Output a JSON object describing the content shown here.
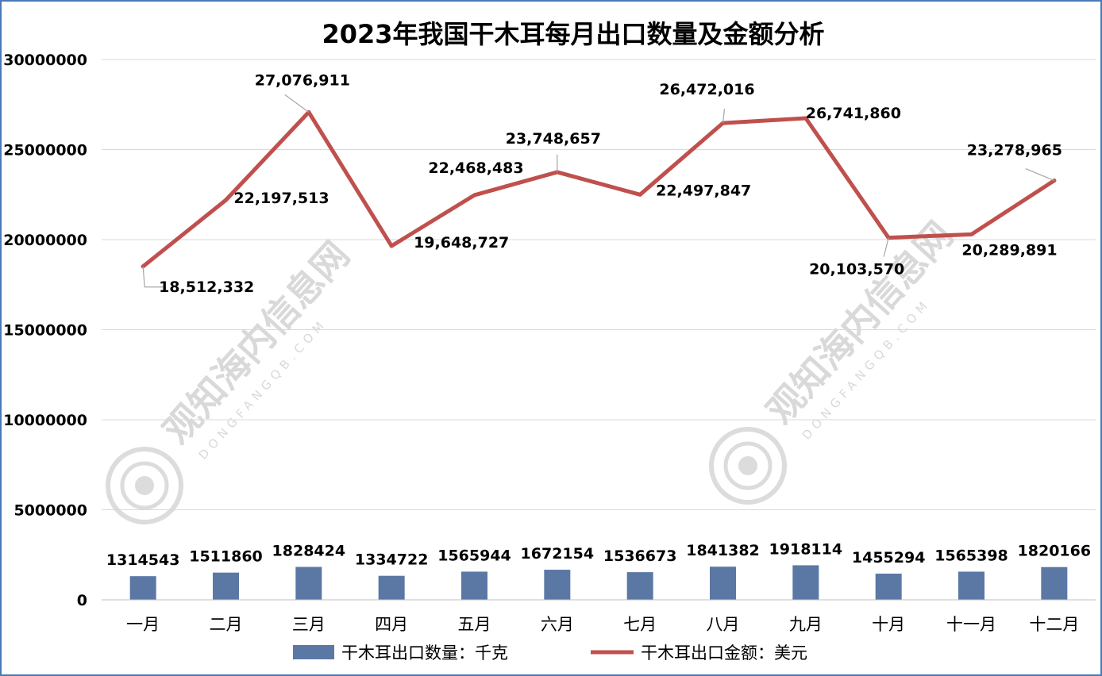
{
  "chart_data": {
    "type": "bar+line",
    "title": "2023年我国干木耳每月出口数量及金额分析",
    "categories": [
      "一月",
      "二月",
      "三月",
      "四月",
      "五月",
      "六月",
      "七月",
      "八月",
      "九月",
      "十月",
      "十一月",
      "十二月"
    ],
    "ylim": [
      0,
      30000000
    ],
    "yticks": [
      "0",
      "5000000",
      "10000000",
      "15000000",
      "20000000",
      "25000000",
      "30000000"
    ],
    "grid": true,
    "legend_position": "bottom",
    "series": [
      {
        "name": "干木耳出口数量：千克",
        "type": "bar",
        "color": "#5b78a5",
        "values": [
          1314543,
          1511860,
          1828424,
          1334722,
          1565944,
          1672154,
          1536673,
          1841382,
          1918114,
          1455294,
          1565398,
          1820166
        ],
        "labels": [
          "1314543",
          "1511860",
          "1828424",
          "1334722",
          "1565944",
          "1672154",
          "1536673",
          "1841382",
          "1918114",
          "1455294",
          "1565398",
          "1820166"
        ]
      },
      {
        "name": "干木耳出口金额：美元",
        "type": "line",
        "color": "#c0504d",
        "values": [
          18512332,
          22197513,
          27076911,
          19648727,
          22468483,
          23748657,
          22497847,
          26472016,
          26741860,
          20103570,
          20289891,
          23278965
        ],
        "labels": [
          "18,512,332",
          "22,197,513",
          "27,076,911",
          "19,648,727",
          "22,468,483",
          "23,748,657",
          "22,497,847",
          "26,472,016",
          "26,741,860",
          "20,103,570",
          "20,289,891",
          "23,278,965"
        ]
      }
    ]
  },
  "watermark": {
    "text": "观知海内信息网",
    "sub": "DONGFANGQB.COM"
  }
}
